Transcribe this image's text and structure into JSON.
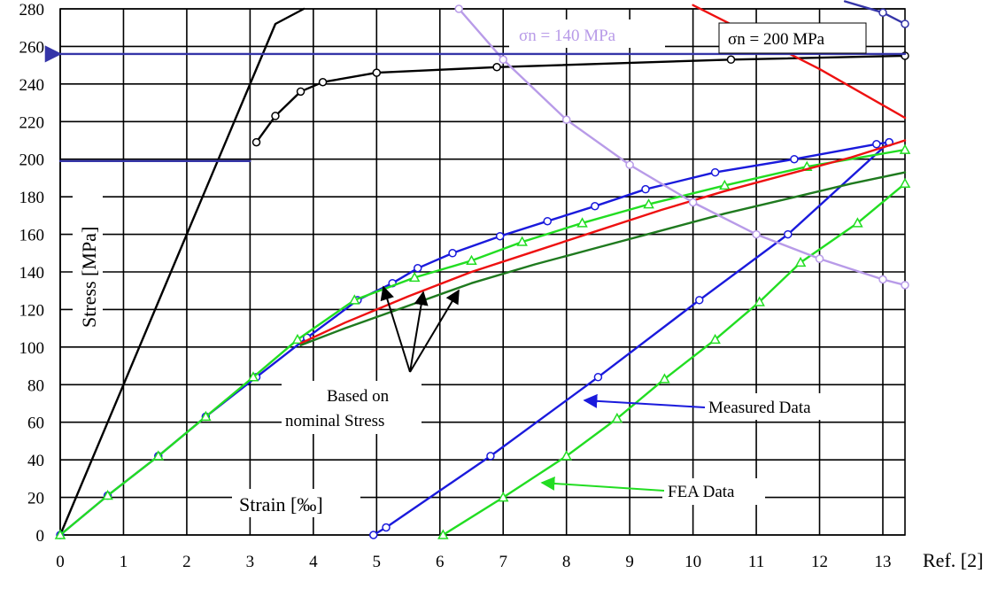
{
  "chart_data": {
    "type": "line",
    "xlabel": "Strain [‰]",
    "ylabel": "Stress [MPa]",
    "reference": "Ref. [2]",
    "xlim": [
      0,
      13.35
    ],
    "ylim": [
      0,
      280
    ],
    "x_ticks": [
      0,
      1,
      2,
      3,
      4,
      5,
      6,
      7,
      8,
      9,
      10,
      11,
      12,
      13
    ],
    "y_ticks": [
      0,
      20,
      40,
      60,
      80,
      100,
      120,
      140,
      160,
      180,
      200,
      220,
      240,
      260,
      280
    ],
    "grid": true,
    "legend_position": "top-right",
    "colors": {
      "measured": "#1a1adc",
      "fea": "#22dd22",
      "nominal_red": "#ee1111",
      "nominal_darkgreen": "#1f7a1f",
      "black": "#000000",
      "violet": "#b89be8",
      "navy": "#3535a8",
      "grid": "#000000"
    },
    "annotations": {
      "based_on_line1": "Based on",
      "based_on_line2": "nominal Stress",
      "measured_label": "Measured Data",
      "fea_label": "FEA Data"
    },
    "legend": {
      "sigma140": "σn = 140 MPa",
      "sigma200": "σn = 200 MPa"
    },
    "series": [
      {
        "key": "elastic_black",
        "color": "#000000",
        "markers": false,
        "x": [
          0,
          0.8,
          1.6,
          2.4,
          3.0,
          3.4,
          3.85
        ],
        "y": [
          0,
          64,
          128,
          192,
          240,
          272,
          280
        ]
      },
      {
        "key": "black_curve",
        "color": "#000000",
        "markers": true,
        "x": [
          3.1,
          3.4,
          3.8,
          4.15,
          5.0,
          6.9,
          10.6,
          13.35
        ],
        "y": [
          209,
          223,
          236,
          241,
          246,
          249,
          253,
          255
        ]
      },
      {
        "key": "measured_loading",
        "color": "#1a1adc",
        "markers": true,
        "marker": "circle",
        "x": [
          0,
          0.75,
          1.55,
          2.3,
          3.1,
          3.9,
          4.7,
          5.25,
          5.65,
          6.2,
          6.95,
          7.7,
          8.45,
          9.25,
          10.35,
          11.6,
          12.9,
          13.1
        ],
        "y": [
          0,
          21,
          42,
          63,
          84,
          105,
          125,
          134,
          142,
          150,
          159,
          167,
          175,
          184,
          193,
          200,
          208,
          209
        ]
      },
      {
        "key": "measured_unloading",
        "color": "#1a1adc",
        "markers": true,
        "marker": "circle",
        "x": [
          4.95,
          5.15,
          6.8,
          8.5,
          10.1,
          11.5,
          13.1
        ],
        "y": [
          0,
          4,
          42,
          84,
          125,
          160,
          209
        ]
      },
      {
        "key": "fea_loading",
        "color": "#22dd22",
        "markers": true,
        "marker": "triangle",
        "x": [
          0,
          0.75,
          1.55,
          2.3,
          3.05,
          3.75,
          4.65,
          5.6,
          6.5,
          7.3,
          8.25,
          9.3,
          10.5,
          11.8,
          13.35
        ],
        "y": [
          0,
          21,
          42,
          63,
          84,
          104,
          125,
          137,
          146,
          156,
          166,
          176,
          186,
          196,
          205
        ]
      },
      {
        "key": "fea_unloading",
        "color": "#22dd22",
        "markers": true,
        "marker": "triangle",
        "x": [
          6.05,
          7.0,
          8.0,
          8.8,
          9.55,
          10.35,
          11.05,
          11.7,
          12.6,
          13.35
        ],
        "y": [
          0,
          20,
          42,
          62,
          83,
          104,
          124,
          145,
          166,
          187
        ]
      },
      {
        "key": "nominal_red",
        "color": "#ee1111",
        "markers": false,
        "x": [
          3.8,
          4.5,
          5.5,
          6.5,
          7.5,
          8.5,
          9.5,
          10.5,
          11.5,
          12.5,
          13.35
        ],
        "y": [
          102,
          113,
          127,
          140,
          151,
          162,
          173,
          183,
          192,
          201,
          210
        ]
      },
      {
        "key": "nominal_darkgreen",
        "color": "#1f7a1f",
        "markers": false,
        "x": [
          3.8,
          4.5,
          5.5,
          6.5,
          7.5,
          8.5,
          9.5,
          10.5,
          11.5,
          12.5,
          13.35
        ],
        "y": [
          101,
          110,
          122,
          134,
          144,
          153,
          162,
          171,
          179,
          187,
          193
        ]
      },
      {
        "key": "sigma140_curve",
        "color": "#b89be8",
        "markers": true,
        "x": [
          6.3,
          7.0,
          8.0,
          9.0,
          10.0,
          11.0,
          12.0,
          13.0,
          13.35
        ],
        "y": [
          280,
          253,
          221,
          197,
          177,
          160,
          147,
          136,
          133
        ]
      },
      {
        "key": "red_curve_top",
        "color": "#ee1111",
        "markers": false,
        "x": [
          10.0,
          11.0,
          12.0,
          13.35
        ],
        "y": [
          282,
          265,
          248,
          222
        ]
      },
      {
        "key": "navy_curve_top",
        "color": "#3535a8",
        "markers": true,
        "x": [
          12.4,
          13.0,
          13.35
        ],
        "y": [
          284,
          278,
          272
        ]
      },
      {
        "key": "hline_256",
        "color": "#3535a8",
        "markers": false,
        "x": [
          0,
          13.35
        ],
        "y": [
          256,
          256
        ]
      },
      {
        "key": "hline_200",
        "color": "#3535a8",
        "markers": false,
        "x": [
          0,
          3.0
        ],
        "y": [
          199,
          199
        ]
      }
    ]
  }
}
